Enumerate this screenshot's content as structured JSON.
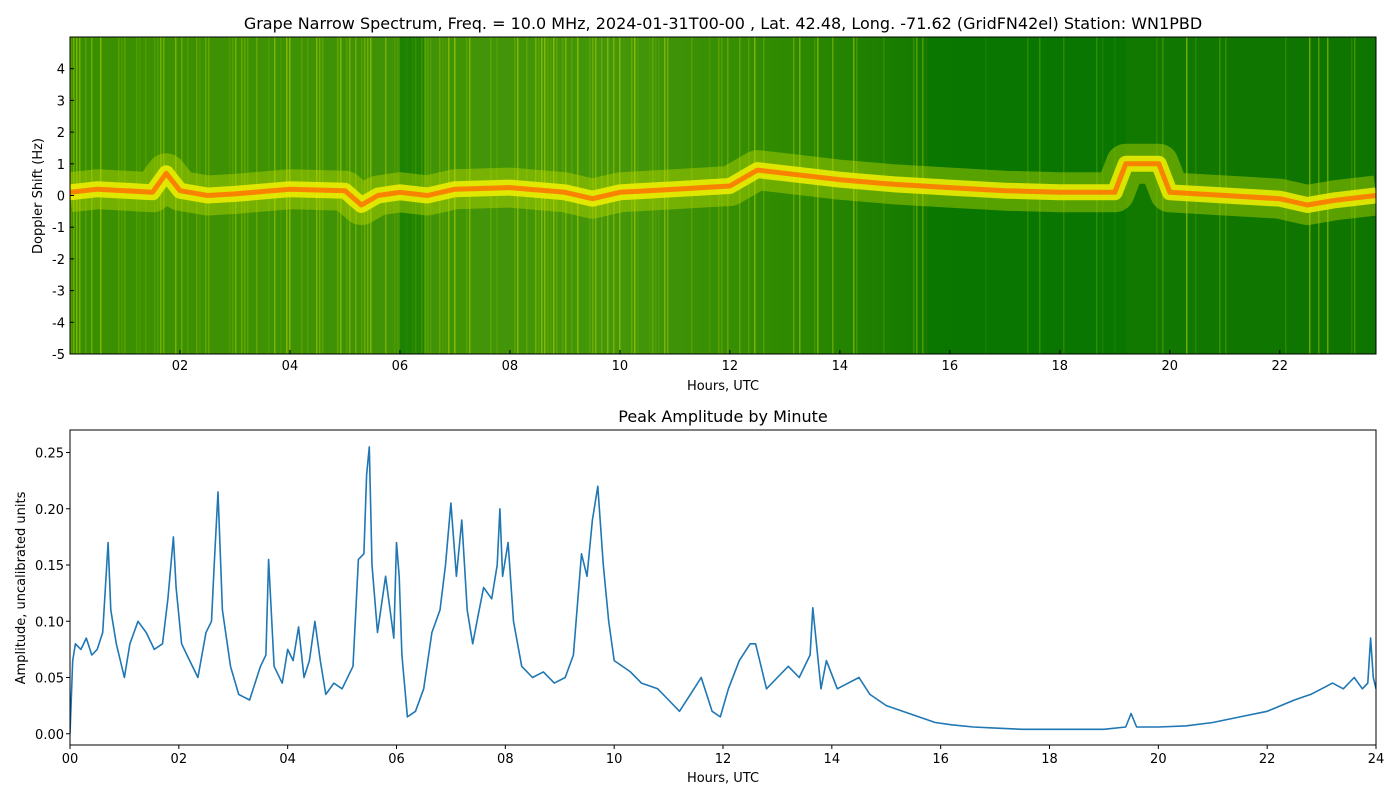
{
  "chart_data": [
    {
      "type": "heatmap",
      "title": "Grape Narrow Spectrum, Freq. = 10.0 MHz, 2024-01-31T00-00 , Lat.  42.48, Long. -71.62 (GridFN42el) Station: WN1PBD",
      "xlabel": "Hours, UTC",
      "ylabel": "Doppler Shift (Hz)",
      "xlim": [
        0,
        23.75
      ],
      "ylim": [
        -5,
        5
      ],
      "x_ticks": [
        {
          "value": 2,
          "label": "02"
        },
        {
          "value": 4,
          "label": "04"
        },
        {
          "value": 6,
          "label": "06"
        },
        {
          "value": 8,
          "label": "08"
        },
        {
          "value": 10,
          "label": "10"
        },
        {
          "value": 12,
          "label": "12"
        },
        {
          "value": 14,
          "label": "14"
        },
        {
          "value": 16,
          "label": "16"
        },
        {
          "value": 18,
          "label": "18"
        },
        {
          "value": 20,
          "label": "20"
        },
        {
          "value": 22,
          "label": "22"
        }
      ],
      "y_ticks": [
        {
          "value": 4,
          "label": "4"
        },
        {
          "value": 3,
          "label": "3"
        },
        {
          "value": 2,
          "label": "2"
        },
        {
          "value": 1,
          "label": "1"
        },
        {
          "value": 0,
          "label": "0"
        },
        {
          "value": -1,
          "label": "-1"
        },
        {
          "value": -2,
          "label": "-2"
        },
        {
          "value": -3,
          "label": "-3"
        },
        {
          "value": -4,
          "label": "-4"
        },
        {
          "value": -5,
          "label": "-5"
        }
      ],
      "colormap": [
        "#007400",
        "#2e8a00",
        "#6fb000",
        "#b8d600",
        "#f2f000",
        "#ffb000",
        "#ff6a00",
        "#e03000"
      ],
      "carrier_trace": [
        {
          "x": 0.0,
          "y": 0.1
        },
        {
          "x": 0.5,
          "y": 0.2
        },
        {
          "x": 1.0,
          "y": 0.15
        },
        {
          "x": 1.5,
          "y": 0.1
        },
        {
          "x": 1.75,
          "y": 0.7
        },
        {
          "x": 2.0,
          "y": 0.15
        },
        {
          "x": 2.5,
          "y": 0.0
        },
        {
          "x": 3.0,
          "y": 0.05
        },
        {
          "x": 4.0,
          "y": 0.2
        },
        {
          "x": 5.0,
          "y": 0.15
        },
        {
          "x": 5.3,
          "y": -0.3
        },
        {
          "x": 5.6,
          "y": 0.0
        },
        {
          "x": 6.0,
          "y": 0.1
        },
        {
          "x": 6.5,
          "y": 0.0
        },
        {
          "x": 7.0,
          "y": 0.2
        },
        {
          "x": 8.0,
          "y": 0.25
        },
        {
          "x": 9.0,
          "y": 0.1
        },
        {
          "x": 9.5,
          "y": -0.1
        },
        {
          "x": 10.0,
          "y": 0.1
        },
        {
          "x": 11.0,
          "y": 0.2
        },
        {
          "x": 12.0,
          "y": 0.3
        },
        {
          "x": 12.5,
          "y": 0.8
        },
        {
          "x": 13.0,
          "y": 0.7
        },
        {
          "x": 14.0,
          "y": 0.5
        },
        {
          "x": 15.0,
          "y": 0.35
        },
        {
          "x": 16.0,
          "y": 0.25
        },
        {
          "x": 17.0,
          "y": 0.15
        },
        {
          "x": 18.0,
          "y": 0.1
        },
        {
          "x": 19.0,
          "y": 0.1
        },
        {
          "x": 19.2,
          "y": 1.0
        },
        {
          "x": 19.8,
          "y": 1.0
        },
        {
          "x": 20.0,
          "y": 0.1
        },
        {
          "x": 21.0,
          "y": 0.0
        },
        {
          "x": 22.0,
          "y": -0.1
        },
        {
          "x": 22.5,
          "y": -0.3
        },
        {
          "x": 23.0,
          "y": -0.15
        },
        {
          "x": 23.75,
          "y": 0.0
        }
      ]
    },
    {
      "type": "line",
      "title": "Peak Amplitude by Minute",
      "xlabel": "Hours, UTC",
      "ylabel": "Amplitude, uncalibrated units",
      "xlim": [
        0,
        24
      ],
      "ylim": [
        -0.01,
        0.27
      ],
      "color": "#1f77b4",
      "x_ticks": [
        {
          "value": 0,
          "label": "00"
        },
        {
          "value": 2,
          "label": "02"
        },
        {
          "value": 4,
          "label": "04"
        },
        {
          "value": 6,
          "label": "06"
        },
        {
          "value": 8,
          "label": "08"
        },
        {
          "value": 10,
          "label": "10"
        },
        {
          "value": 12,
          "label": "12"
        },
        {
          "value": 14,
          "label": "14"
        },
        {
          "value": 16,
          "label": "16"
        },
        {
          "value": 18,
          "label": "18"
        },
        {
          "value": 20,
          "label": "20"
        },
        {
          "value": 22,
          "label": "22"
        },
        {
          "value": 24,
          "label": "24"
        }
      ],
      "y_ticks": [
        {
          "value": 0.0,
          "label": "0.00"
        },
        {
          "value": 0.05,
          "label": "0.05"
        },
        {
          "value": 0.1,
          "label": "0.10"
        },
        {
          "value": 0.15,
          "label": "0.15"
        },
        {
          "value": 0.2,
          "label": "0.20"
        },
        {
          "value": 0.25,
          "label": "0.25"
        }
      ],
      "x": [
        0.0,
        0.05,
        0.1,
        0.2,
        0.3,
        0.4,
        0.5,
        0.6,
        0.65,
        0.7,
        0.75,
        0.85,
        1.0,
        1.1,
        1.25,
        1.4,
        1.55,
        1.7,
        1.8,
        1.9,
        1.95,
        2.05,
        2.2,
        2.35,
        2.5,
        2.6,
        2.65,
        2.72,
        2.8,
        2.95,
        3.1,
        3.3,
        3.5,
        3.6,
        3.65,
        3.75,
        3.9,
        4.0,
        4.1,
        4.2,
        4.3,
        4.4,
        4.5,
        4.6,
        4.7,
        4.85,
        5.0,
        5.2,
        5.3,
        5.4,
        5.45,
        5.5,
        5.55,
        5.65,
        5.8,
        5.95,
        6.0,
        6.05,
        6.1,
        6.2,
        6.35,
        6.5,
        6.65,
        6.8,
        6.9,
        7.0,
        7.1,
        7.2,
        7.3,
        7.4,
        7.5,
        7.6,
        7.75,
        7.85,
        7.9,
        7.95,
        8.05,
        8.15,
        8.3,
        8.5,
        8.7,
        8.9,
        9.1,
        9.25,
        9.4,
        9.5,
        9.6,
        9.7,
        9.8,
        9.9,
        10.0,
        10.3,
        10.5,
        10.8,
        11.0,
        11.2,
        11.4,
        11.6,
        11.8,
        11.95,
        12.1,
        12.3,
        12.5,
        12.6,
        12.8,
        13.0,
        13.2,
        13.4,
        13.6,
        13.65,
        13.8,
        13.9,
        14.1,
        14.3,
        14.5,
        14.7,
        15.0,
        15.3,
        15.6,
        15.9,
        16.2,
        16.6,
        17.0,
        17.5,
        18.0,
        18.5,
        19.0,
        19.4,
        19.5,
        19.6,
        20.0,
        20.5,
        21.0,
        21.5,
        22.0,
        22.5,
        22.8,
        23.0,
        23.2,
        23.4,
        23.6,
        23.75,
        23.85,
        23.9,
        23.95,
        24.0
      ],
      "values": [
        0.0,
        0.065,
        0.08,
        0.075,
        0.085,
        0.07,
        0.075,
        0.09,
        0.13,
        0.17,
        0.11,
        0.08,
        0.05,
        0.08,
        0.1,
        0.09,
        0.075,
        0.08,
        0.12,
        0.175,
        0.13,
        0.08,
        0.065,
        0.05,
        0.09,
        0.1,
        0.15,
        0.215,
        0.11,
        0.06,
        0.035,
        0.03,
        0.06,
        0.07,
        0.155,
        0.06,
        0.045,
        0.075,
        0.065,
        0.095,
        0.05,
        0.065,
        0.1,
        0.065,
        0.035,
        0.045,
        0.04,
        0.06,
        0.155,
        0.16,
        0.23,
        0.255,
        0.15,
        0.09,
        0.14,
        0.085,
        0.17,
        0.14,
        0.07,
        0.015,
        0.02,
        0.04,
        0.09,
        0.11,
        0.15,
        0.205,
        0.14,
        0.19,
        0.11,
        0.08,
        0.105,
        0.13,
        0.12,
        0.15,
        0.2,
        0.14,
        0.17,
        0.1,
        0.06,
        0.05,
        0.055,
        0.045,
        0.05,
        0.07,
        0.16,
        0.14,
        0.19,
        0.22,
        0.15,
        0.1,
        0.065,
        0.055,
        0.045,
        0.04,
        0.03,
        0.02,
        0.035,
        0.05,
        0.02,
        0.015,
        0.04,
        0.065,
        0.08,
        0.08,
        0.04,
        0.05,
        0.06,
        0.05,
        0.07,
        0.112,
        0.04,
        0.065,
        0.04,
        0.045,
        0.05,
        0.035,
        0.025,
        0.02,
        0.015,
        0.01,
        0.008,
        0.006,
        0.005,
        0.004,
        0.004,
        0.004,
        0.004,
        0.006,
        0.018,
        0.006,
        0.006,
        0.007,
        0.01,
        0.015,
        0.02,
        0.03,
        0.035,
        0.04,
        0.045,
        0.04,
        0.05,
        0.04,
        0.045,
        0.085,
        0.05,
        0.04
      ]
    }
  ]
}
